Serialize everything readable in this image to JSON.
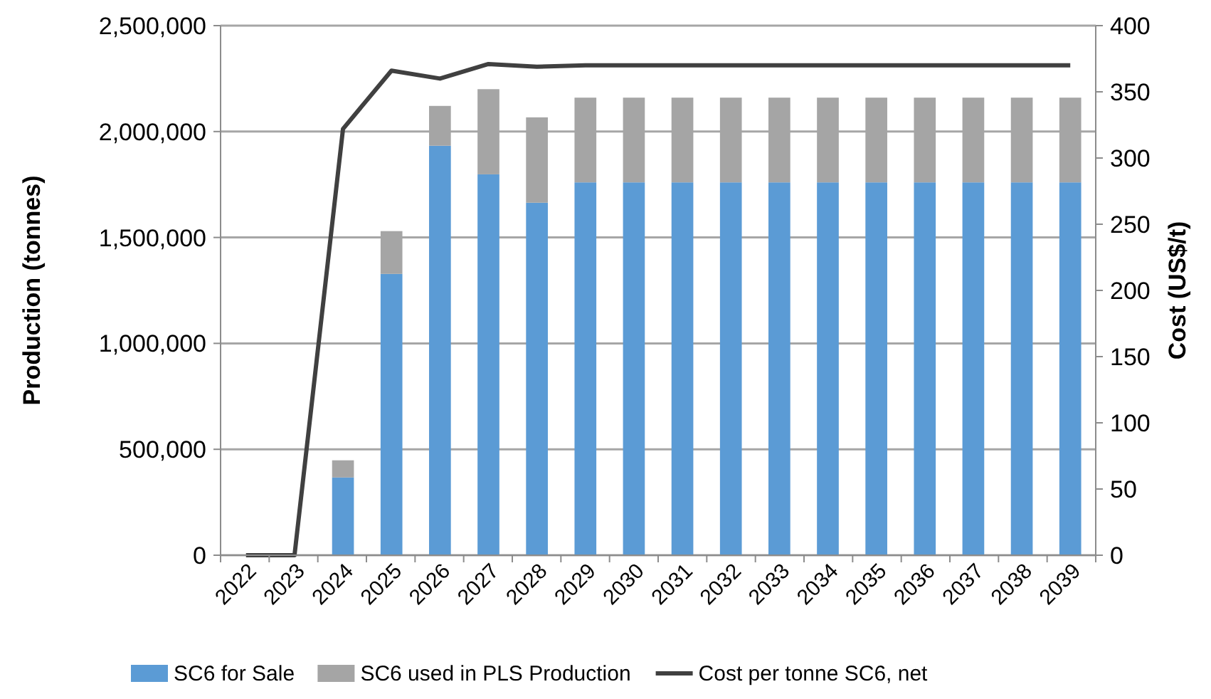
{
  "chart_data": {
    "type": "bar",
    "stacked": true,
    "categories": [
      "2022",
      "2023",
      "2024",
      "2025",
      "2026",
      "2027",
      "2028",
      "2029",
      "2030",
      "2031",
      "2032",
      "2033",
      "2034",
      "2035",
      "2036",
      "2037",
      "2038",
      "2039"
    ],
    "ylabel": "Production (tonnes)",
    "y2label": "Cost (US$/t)",
    "ylim": [
      0,
      2500000
    ],
    "yticks": [
      {
        "value": 0,
        "label": "0"
      },
      {
        "value": 500000,
        "label": "500,000"
      },
      {
        "value": 1000000,
        "label": "1,000,000"
      },
      {
        "value": 1500000,
        "label": "1,500,000"
      },
      {
        "value": 2000000,
        "label": "2,000,000"
      },
      {
        "value": 2500000,
        "label": "2,500,000"
      }
    ],
    "y2lim": [
      0,
      400
    ],
    "y2ticks": [
      0,
      50,
      100,
      150,
      200,
      250,
      300,
      350,
      400
    ],
    "grid": "y",
    "legend": "bottom",
    "series": [
      {
        "name": "SC6 for Sale",
        "color": "#5b9bd5",
        "values": [
          0,
          0,
          367000,
          1328000,
          1933000,
          1798000,
          1664000,
          1760000,
          1760000,
          1760000,
          1760000,
          1760000,
          1760000,
          1760000,
          1760000,
          1760000,
          1760000,
          1760000
        ]
      },
      {
        "name": "SC6 used in PLS Production",
        "color": "#a5a5a5",
        "values": [
          0,
          0,
          81000,
          202000,
          188000,
          402000,
          403000,
          400000,
          400000,
          400000,
          400000,
          400000,
          400000,
          400000,
          400000,
          400000,
          400000,
          400000
        ]
      },
      {
        "name": "Cost per tonne SC6, net",
        "type": "line",
        "axis": "y2",
        "color": "#404040",
        "values": [
          0,
          0,
          322,
          366,
          360,
          371,
          369,
          370,
          370,
          370,
          370,
          370,
          370,
          370,
          370,
          370,
          370,
          370
        ]
      }
    ]
  }
}
